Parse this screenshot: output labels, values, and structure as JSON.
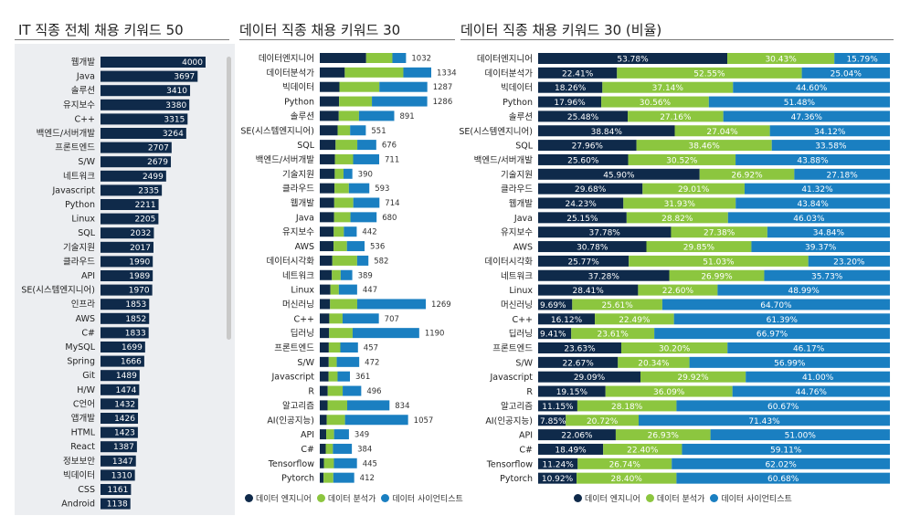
{
  "colors": {
    "navy": "#0f2a4a",
    "green": "#8cc63f",
    "blue": "#1a7fc1"
  },
  "legend": [
    {
      "label": "데이터 엔지니어",
      "color": "#0f2a4a"
    },
    {
      "label": "데이터 분석가",
      "color": "#8cc63f"
    },
    {
      "label": "데이터 사이언티스트",
      "color": "#1a7fc1"
    }
  ],
  "chart_data": [
    {
      "type": "bar",
      "orientation": "horizontal",
      "title": "IT 직종 전체 채용 키워드 50",
      "categories": [
        "웹개발",
        "Java",
        "솔루션",
        "유지보수",
        "C++",
        "백엔드/서버개발",
        "프론트엔드",
        "S/W",
        "네트워크",
        "Javascript",
        "Python",
        "Linux",
        "SQL",
        "기술지원",
        "클라우드",
        "API",
        "SE(시스템엔지니어)",
        "인프라",
        "AWS",
        "C#",
        "MySQL",
        "Spring",
        "Git",
        "H/W",
        "C언어",
        "앱개발",
        "HTML",
        "React",
        "정보보안",
        "빅데이터",
        "CSS",
        "Android"
      ],
      "values": [
        4000,
        3697,
        3410,
        3380,
        3315,
        3264,
        2707,
        2679,
        2499,
        2335,
        2211,
        2205,
        2032,
        2017,
        1990,
        1989,
        1970,
        1853,
        1852,
        1833,
        1699,
        1666,
        1489,
        1474,
        1432,
        1426,
        1423,
        1387,
        1347,
        1310,
        1161,
        1138
      ],
      "xlim": [
        0,
        4000
      ]
    },
    {
      "type": "bar",
      "orientation": "horizontal",
      "stacked": true,
      "title": "데이터 직종 채용 키워드 30",
      "categories": [
        "데이터엔지니어",
        "데이터분석가",
        "빅데이터",
        "Python",
        "솔루션",
        "SE(시스템엔지니어)",
        "SQL",
        "백엔드/서버개발",
        "기술지원",
        "클라우드",
        "웹개발",
        "Java",
        "유지보수",
        "AWS",
        "데이터시각화",
        "네트워크",
        "Linux",
        "머신러닝",
        "C++",
        "딥러닝",
        "프론트엔드",
        "S/W",
        "Javascript",
        "R",
        "알고리즘",
        "AI(인공지능)",
        "API",
        "C#",
        "Tensorflow",
        "Pytorch"
      ],
      "totals": [
        1032,
        1334,
        1287,
        1286,
        891,
        551,
        676,
        711,
        390,
        593,
        714,
        680,
        442,
        536,
        582,
        389,
        447,
        1269,
        707,
        1190,
        457,
        472,
        361,
        496,
        834,
        1057,
        349,
        384,
        445,
        412
      ],
      "series": [
        {
          "name": "데이터 엔지니어",
          "values": [
            555,
            299,
            235,
            231,
            227,
            214,
            189,
            182,
            179,
            176,
            173,
            171,
            167,
            165,
            150,
            145,
            127,
            123,
            114,
            112,
            108,
            107,
            105,
            95,
            93,
            83,
            77,
            71,
            50,
            45
          ]
        },
        {
          "name": "데이터 분석가",
          "values": [
            314,
            701,
            478,
            393,
            242,
            149,
            260,
            217,
            105,
            172,
            228,
            196,
            121,
            160,
            297,
            105,
            101,
            325,
            159,
            281,
            138,
            96,
            108,
            179,
            235,
            219,
            94,
            86,
            119,
            117
          ]
        },
        {
          "name": "데이터 사이언티스트",
          "values": [
            163,
            334,
            574,
            662,
            422,
            188,
            227,
            312,
            106,
            245,
            313,
            313,
            154,
            211,
            135,
            139,
            219,
            821,
            434,
            797,
            211,
            269,
            148,
            222,
            506,
            755,
            178,
            227,
            276,
            250
          ]
        }
      ]
    },
    {
      "type": "bar",
      "orientation": "horizontal",
      "stacked": true,
      "percent": true,
      "title": "데이터 직종 채용 키워드 30 (비율)",
      "categories": [
        "데이터엔지니어",
        "데이터분석가",
        "빅데이터",
        "Python",
        "솔루션",
        "SE(시스템엔지니어)",
        "SQL",
        "백엔드/서버개발",
        "기술지원",
        "클라우드",
        "웹개발",
        "Java",
        "유지보수",
        "AWS",
        "데이터시각화",
        "네트워크",
        "Linux",
        "머신러닝",
        "C++",
        "딥러닝",
        "프론트엔드",
        "S/W",
        "Javascript",
        "R",
        "알고리즘",
        "AI(인공지능)",
        "API",
        "C#",
        "Tensorflow",
        "Pytorch"
      ],
      "series": [
        {
          "name": "데이터 엔지니어",
          "values": [
            "53.78%",
            "22.41%",
            "18.26%",
            "17.96%",
            "25.48%",
            "38.84%",
            "27.96%",
            "25.60%",
            "45.90%",
            "29.68%",
            "24.23%",
            "25.15%",
            "37.78%",
            "30.78%",
            "25.77%",
            "37.28%",
            "28.41%",
            "9.69%",
            "16.12%",
            "9.41%",
            "23.63%",
            "22.67%",
            "29.09%",
            "19.15%",
            "11.15%",
            "7.85%",
            "22.06%",
            "18.49%",
            "11.24%",
            "10.92%"
          ]
        },
        {
          "name": "데이터 분석가",
          "values": [
            "30.43%",
            "52.55%",
            "37.14%",
            "30.56%",
            "27.16%",
            "27.04%",
            "38.46%",
            "30.52%",
            "26.92%",
            "29.01%",
            "31.93%",
            "28.82%",
            "27.38%",
            "29.85%",
            "51.03%",
            "26.99%",
            "22.60%",
            "25.61%",
            "22.49%",
            "23.61%",
            "30.20%",
            "20.34%",
            "29.92%",
            "36.09%",
            "28.18%",
            "20.72%",
            "26.93%",
            "22.40%",
            "26.74%",
            "28.40%"
          ]
        },
        {
          "name": "데이터 사이언티스트",
          "values": [
            "15.79%",
            "25.04%",
            "44.60%",
            "51.48%",
            "47.36%",
            "34.12%",
            "33.58%",
            "43.88%",
            "27.18%",
            "41.32%",
            "43.84%",
            "46.03%",
            "34.84%",
            "39.37%",
            "23.20%",
            "35.73%",
            "48.99%",
            "64.70%",
            "61.39%",
            "66.97%",
            "46.17%",
            "56.99%",
            "41.00%",
            "44.76%",
            "60.67%",
            "71.43%",
            "51.00%",
            "59.11%",
            "62.02%",
            "60.68%"
          ]
        }
      ]
    }
  ]
}
